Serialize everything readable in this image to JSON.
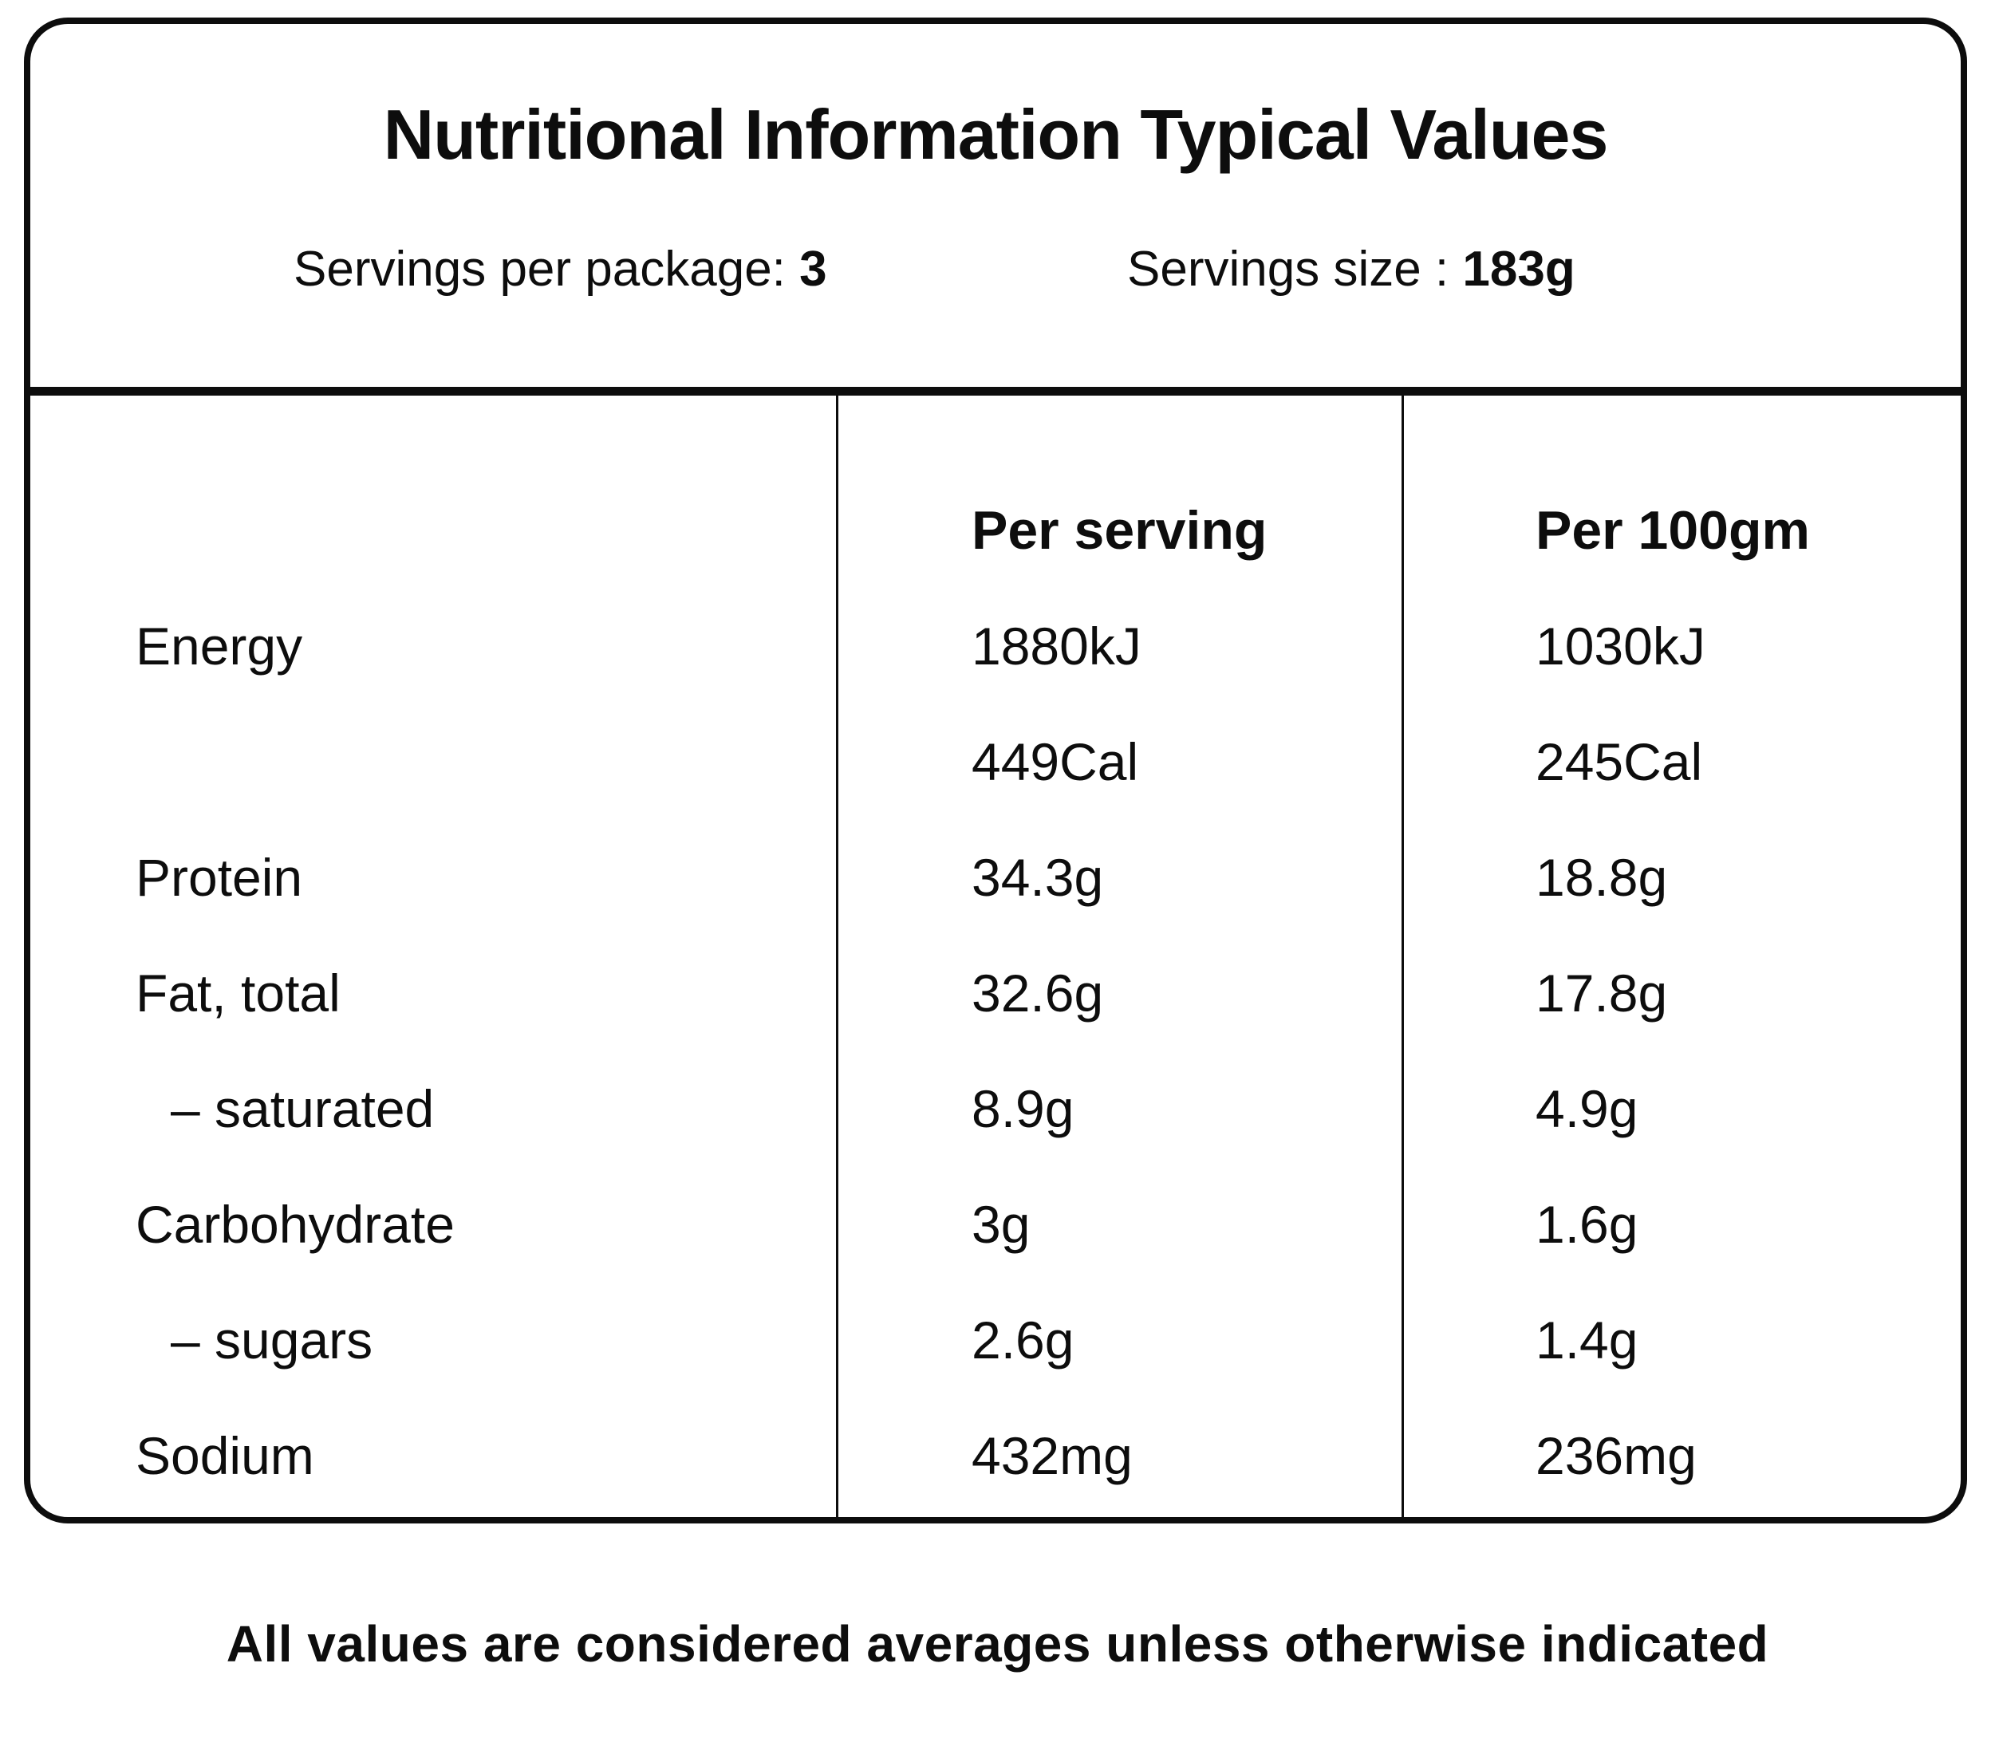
{
  "label": {
    "title": "Nutritional Information Typical Values",
    "servings_per_package_label": "Servings per package:",
    "servings_per_package_value": "3",
    "serving_size_label": "Servings size :",
    "serving_size_value": "183g",
    "columns": {
      "per_serving": "Per serving",
      "per_100g": "Per 100gm"
    },
    "rows": [
      {
        "name": "Energy",
        "per_serving": "1880kJ",
        "per_100g": "1030kJ"
      },
      {
        "name": "",
        "per_serving": "449Cal",
        "per_100g": "245Cal"
      },
      {
        "name": "Protein",
        "per_serving": "34.3g",
        "per_100g": "18.8g"
      },
      {
        "name": "Fat, total",
        "per_serving": "32.6g",
        "per_100g": "17.8g"
      },
      {
        "name": "– saturated",
        "per_serving": "8.9g",
        "per_100g": "4.9g"
      },
      {
        "name": "Carbohydrate",
        "per_serving": "3g",
        "per_100g": "1.6g"
      },
      {
        "name": "– sugars",
        "per_serving": "2.6g",
        "per_100g": "1.4g"
      },
      {
        "name": "Sodium",
        "per_serving": "432mg",
        "per_100g": "236mg"
      }
    ],
    "footnote": "All values are considered averages unless otherwise indicated"
  }
}
